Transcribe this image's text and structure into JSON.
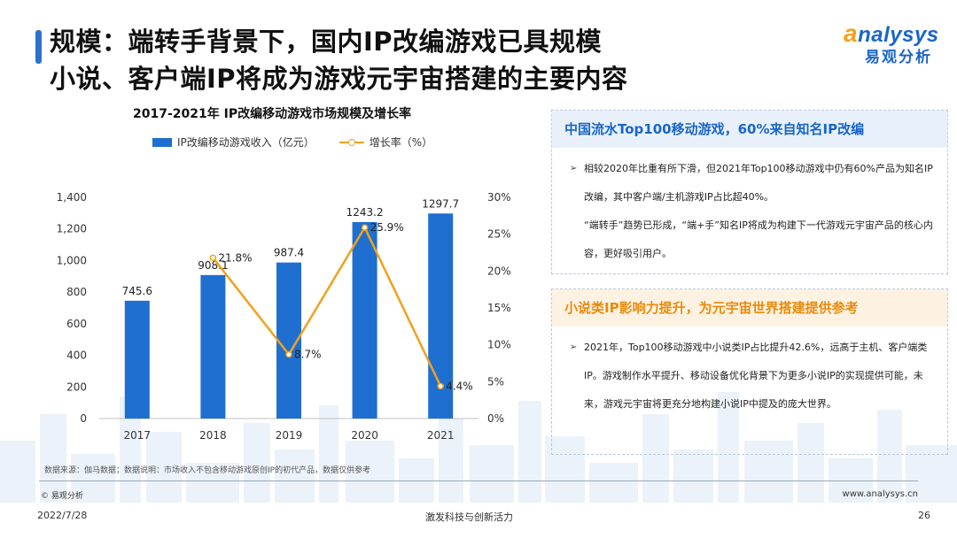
{
  "slide": {
    "title_line1": "规模：端转手背景下，国内IP改编游戏已具规模",
    "title_line2": "小说、客户端IP将成为游戏元宇宙搭建的主要内容",
    "logo_en_a": "a",
    "logo_en_rest": "nalysys",
    "logo_cn": "易观分析",
    "source_note": "数据来源：伽马数据；数据说明：市场收入不包含移动游戏原创IP的初代产品，数据仅供参考",
    "copyright": "© 易观分析",
    "website": "www.analysys.cn",
    "date": "2022/7/28",
    "slogan": "激发科技与创新活力",
    "page_number": "26"
  },
  "panels": [
    {
      "heading": "中国流水Top100移动游戏，60%来自知名IP改编",
      "paragraphs": [
        "相较2020年比重有所下滑，但2021年Top100移动游戏中仍有60%产品为知名IP改编，其中客户端/主机游戏IP占比超40%。",
        "“端转手”趋势已形成，“端+手”知名IP将成为构建下一代游戏元宇宙产品的核心内容，更好吸引用户。"
      ]
    },
    {
      "heading": "小说类IP影响力提升，为元宇宙世界搭建提供参考",
      "paragraphs": [
        "2021年，Top100移动游戏中小说类IP占比提升42.6%，远高于主机、客户端类IP。游戏制作水平提升、移动设备优化背景下为更多小说IP的实现提供可能，未来，游戏元宇宙将更充分地构建小说IP中提及的庞大世界。"
      ]
    }
  ],
  "chart_data": {
    "type": "bar",
    "title": "2017-2021年 IP改编移动游戏市场规模及增长率",
    "categories": [
      "2017",
      "2018",
      "2019",
      "2020",
      "2021"
    ],
    "series": [
      {
        "name": "IP改编移动游戏收入（亿元）",
        "type": "bar",
        "axis": "left",
        "values": [
          745.6,
          908.1,
          987.4,
          1243.2,
          1297.7
        ],
        "labels": [
          "745.6",
          "908.1",
          "987.4",
          "1243.2",
          "1297.7"
        ],
        "color": "#1e6fd0"
      },
      {
        "name": "增长率（%）",
        "type": "line",
        "axis": "right",
        "values": [
          null,
          21.8,
          8.7,
          25.9,
          4.4
        ],
        "labels": [
          "",
          "21.8%",
          "8.7%",
          "25.9%",
          "4.4%"
        ],
        "color": "#f2a11d"
      }
    ],
    "y_left": {
      "min": 0,
      "max": 1400,
      "ticks": [
        0,
        200,
        400,
        600,
        800,
        1000,
        1200,
        1400
      ],
      "tick_labels": [
        "0",
        "200",
        "400",
        "600",
        "800",
        "1,000",
        "1,200",
        "1,400"
      ]
    },
    "y_right": {
      "min": 0,
      "max": 30,
      "ticks": [
        0,
        5,
        10,
        15,
        20,
        25,
        30
      ],
      "tick_labels": [
        "0%",
        "5%",
        "10%",
        "15%",
        "20%",
        "25%",
        "30%"
      ]
    },
    "legend": "top",
    "grid": false
  }
}
